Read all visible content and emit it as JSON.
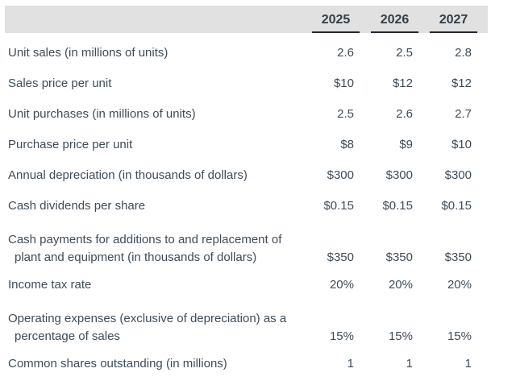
{
  "table": {
    "columns": [
      "2025",
      "2026",
      "2027"
    ],
    "rows": [
      {
        "label_lines": [
          "Unit sales (in millions of units)"
        ],
        "values": [
          "2.6",
          "2.5",
          "2.8"
        ]
      },
      {
        "label_lines": [
          "Sales price per unit"
        ],
        "values": [
          "$10",
          "$12",
          "$12"
        ]
      },
      {
        "label_lines": [
          "Unit purchases (in millions of units)"
        ],
        "values": [
          "2.5",
          "2.6",
          "2.7"
        ]
      },
      {
        "label_lines": [
          "Purchase price per unit"
        ],
        "values": [
          "$8",
          "$9",
          "$10"
        ]
      },
      {
        "label_lines": [
          "Annual depreciation (in thousands of dollars)"
        ],
        "values": [
          "$300",
          "$300",
          "$300"
        ]
      },
      {
        "label_lines": [
          "Cash dividends per share"
        ],
        "values": [
          "$0.15",
          "$0.15",
          "$0.15"
        ]
      },
      {
        "label_lines": [
          "Cash payments for additions to and replacement of",
          "plant and equipment (in thousands of dollars)"
        ],
        "values": [
          "$350",
          "$350",
          "$350"
        ]
      },
      {
        "label_lines": [
          "Income tax rate"
        ],
        "values": [
          "20%",
          "20%",
          "20%"
        ]
      },
      {
        "label_lines": [
          "Operating expenses (exclusive of depreciation) as a",
          "percentage of sales"
        ],
        "values": [
          "15%",
          "15%",
          "15%"
        ]
      },
      {
        "label_lines": [
          "Common shares outstanding (in millions)"
        ],
        "values": [
          "1",
          "1",
          "1"
        ]
      }
    ],
    "colors": {
      "header_background": "#e1e1e1",
      "header_text": "#323e48",
      "body_text": "#3e4c57",
      "underline": "#23282d"
    }
  }
}
